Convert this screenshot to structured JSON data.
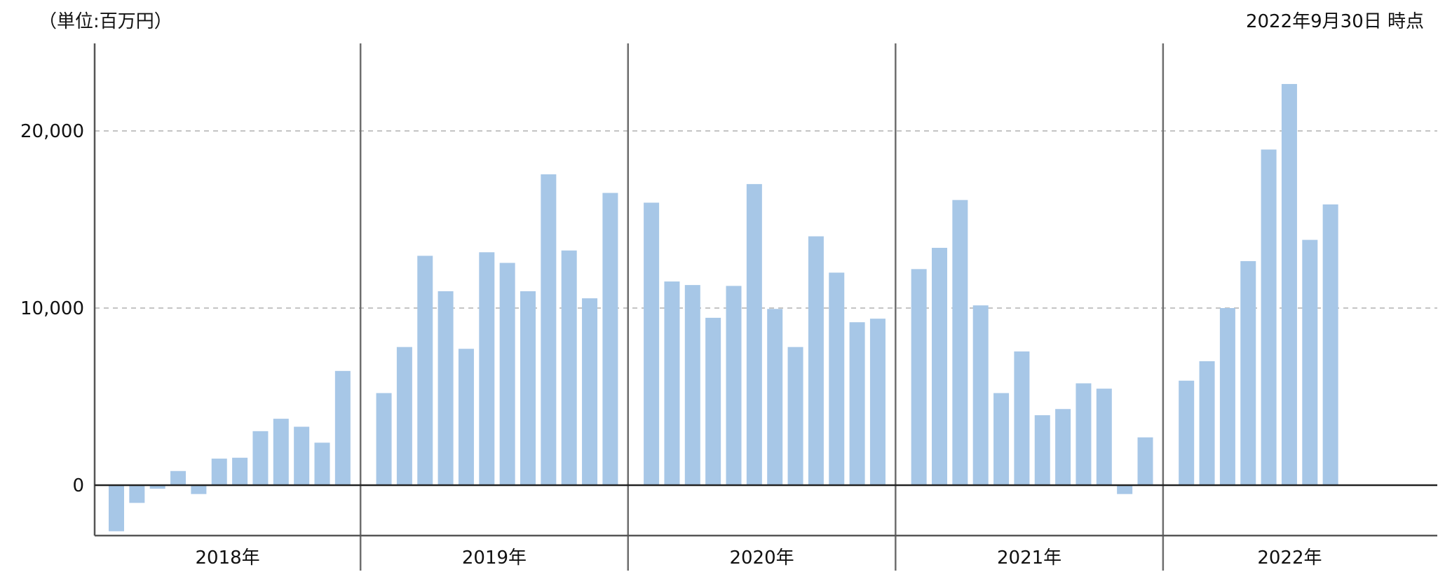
{
  "unit_label": "（単位:百万円）",
  "as_of_label": "2022年9月30日 時点",
  "chart_data": {
    "type": "bar",
    "title": "",
    "xlabel": "",
    "ylabel": "",
    "ylim": [
      -2800,
      25000
    ],
    "yticks": [
      0,
      10000,
      20000
    ],
    "ytick_labels": [
      "0",
      "10,000",
      "20,000"
    ],
    "grid": true,
    "bar_color": "#a7c7e7",
    "groups": [
      {
        "label": "2018年",
        "values": [
          -2600,
          -1000,
          -200,
          800,
          -500,
          1500,
          1550,
          3050,
          3750,
          3300,
          2400,
          6450
        ]
      },
      {
        "label": "2019年",
        "values": [
          5200,
          7800,
          12950,
          10950,
          7700,
          13150,
          12550,
          10950,
          17550,
          13250,
          10550,
          16500
        ]
      },
      {
        "label": "2020年",
        "values": [
          15950,
          11500,
          11300,
          9450,
          11250,
          17000,
          9950,
          7800,
          14050,
          12000,
          9200,
          9400
        ]
      },
      {
        "label": "2021年",
        "values": [
          12200,
          13400,
          16100,
          10150,
          5200,
          7550,
          3950,
          4300,
          5750,
          5450,
          -500,
          2700
        ]
      },
      {
        "label": "2022年",
        "values": [
          5900,
          7000,
          10000,
          12650,
          18950,
          22650,
          13850,
          15850
        ]
      }
    ]
  }
}
